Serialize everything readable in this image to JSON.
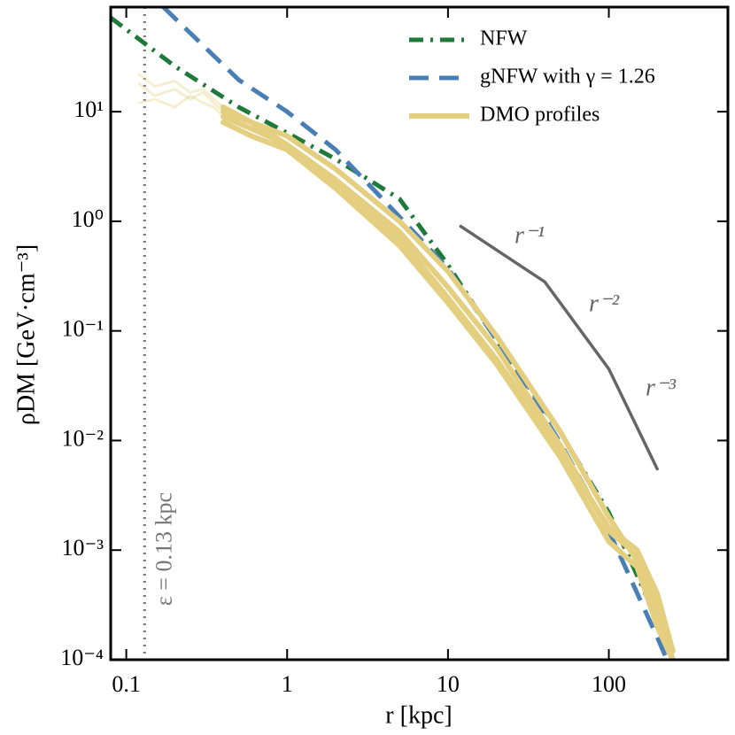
{
  "chart_data": {
    "type": "line",
    "xlabel": "r [kpc]",
    "ylabel": "ρDM [GeV·cm⁻³]",
    "log_x": true,
    "log_y": true,
    "xlim": [
      0.08,
      550
    ],
    "ylim": [
      0.0001,
      90
    ],
    "xticks": [
      0.1,
      1,
      10,
      100
    ],
    "yticks": [
      {
        "value": 0.0001,
        "label": "10⁻⁴"
      },
      {
        "value": 0.001,
        "label": "10⁻³"
      },
      {
        "value": 0.01,
        "label": "10⁻²"
      },
      {
        "value": 0.1,
        "label": "10⁻¹"
      },
      {
        "value": 1,
        "label": "10⁰"
      },
      {
        "value": 10,
        "label": "10¹"
      }
    ],
    "legend": "upper right",
    "series": [
      {
        "name": "NFW",
        "color": "#1e7a3a",
        "style": "dashdot",
        "x": [
          0.08,
          0.2,
          0.5,
          1,
          2,
          5,
          10,
          20,
          50,
          100,
          200,
          250
        ],
        "values": [
          72,
          26,
          11,
          6.4,
          3.7,
          1.6,
          0.4,
          0.083,
          0.0118,
          0.0022,
          0.00023,
          0.0001
        ]
      },
      {
        "name": "gNFW with γ = 1.26",
        "color": "#4a7fb5",
        "style": "dashed",
        "x": [
          0.17,
          0.5,
          1,
          2,
          5,
          10,
          20,
          50,
          100,
          200,
          230
        ],
        "values": [
          90,
          19.5,
          10,
          4.5,
          1.1,
          0.37,
          0.083,
          0.0095,
          0.0015,
          0.00016,
          0.0001
        ]
      },
      {
        "name": "DMO profiles",
        "color": "#e3cf7f",
        "style": "solid",
        "lines": [
          {
            "x": [
              0.4,
              0.6,
              1,
              2,
              5,
              10,
              20,
              50,
              100,
              150,
              200,
              250
            ],
            "values": [
              10,
              8,
              6,
              3,
              1,
              0.35,
              0.09,
              0.012,
              0.002,
              0.0008,
              0.0003,
              0.0001
            ]
          },
          {
            "x": [
              0.4,
              0.6,
              1,
              2,
              5,
              10,
              20,
              50,
              100,
              150,
              200,
              250
            ],
            "values": [
              9,
              7,
              5,
              2.4,
              0.8,
              0.25,
              0.07,
              0.009,
              0.0015,
              0.0009,
              0.00025,
              0.0001
            ]
          },
          {
            "x": [
              0.4,
              0.6,
              1,
              2,
              5,
              10,
              20,
              50,
              100,
              150,
              200,
              250
            ],
            "values": [
              8,
              6,
              4.5,
              2,
              0.6,
              0.18,
              0.05,
              0.007,
              0.0012,
              0.0007,
              0.0002,
              0.0001
            ]
          },
          {
            "x": [
              0.4,
              0.6,
              1,
              2,
              5,
              10,
              20,
              50,
              100,
              150,
              200,
              250
            ],
            "values": [
              11,
              8,
              5,
              2.2,
              0.7,
              0.2,
              0.055,
              0.008,
              0.0016,
              0.001,
              0.0004,
              0.00012
            ]
          },
          {
            "opacity": 0.35,
            "x": [
              0.12,
              0.15,
              0.2,
              0.25,
              0.3,
              0.35,
              0.4
            ],
            "values": [
              18,
              14,
              16,
              13,
              15,
              12,
              10
            ]
          },
          {
            "opacity": 0.35,
            "x": [
              0.12,
              0.15,
              0.2,
              0.25,
              0.3,
              0.35,
              0.4
            ],
            "values": [
              12,
              13,
              11,
              14,
              12,
              11,
              9
            ]
          },
          {
            "opacity": 0.35,
            "x": [
              0.12,
              0.15,
              0.2,
              0.25,
              0.3,
              0.35,
              0.4
            ],
            "values": [
              22,
              17,
              19,
              15,
              16,
              13,
              11
            ]
          }
        ]
      }
    ],
    "guide": {
      "color": "#666666",
      "x": [
        12,
        40,
        100,
        200
      ],
      "values": [
        0.9,
        0.28,
        0.045,
        0.0055
      ],
      "labels": [
        "r⁻¹",
        "r⁻²",
        "r⁻³"
      ]
    },
    "vline": {
      "x": 0.13,
      "color": "#777777",
      "label": "ε = 0.13 kpc"
    }
  }
}
